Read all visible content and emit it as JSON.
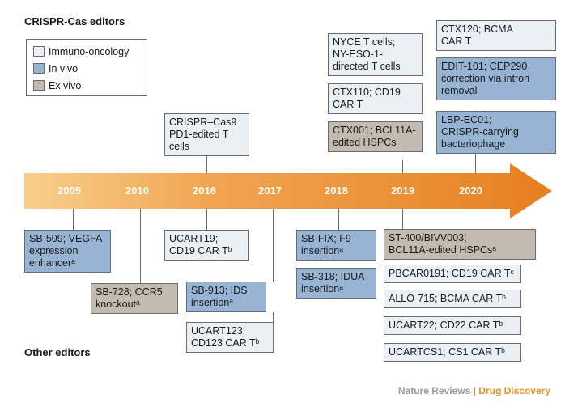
{
  "headings": {
    "crispr": "CRISPR-Cas editors",
    "other": "Other editors"
  },
  "legend": [
    {
      "label": "Immuno-oncology",
      "color": "#eaf0f6"
    },
    {
      "label": "In vivo",
      "color": "#98b4d4"
    },
    {
      "label": "Ex vivo",
      "color": "#c3bbaf"
    }
  ],
  "timeline": {
    "arrow_color_start": "#f6c77e",
    "arrow_color_end": "#e98425",
    "years": [
      "2005",
      "2010",
      "2016",
      "2017",
      "2018",
      "2019",
      "2020"
    ]
  },
  "crispr_items": {
    "pd1_2016": "CRISPR–Cas9\nPD1-edited T\ncells",
    "nyce_2019": "NYCE T cells;\nNY-ESO-1-\ndirected T cells",
    "ctx110_2019": "CTX110; CD19\nCAR T",
    "ctx001_2019": "CTX001; BCL11A-\nedited HSPCs",
    "ctx120_2020": "CTX120; BCMA\nCAR T",
    "edit101_2020": "EDIT-101; CEP290\ncorrection via intron\nremoval",
    "lbp_2020": "LBP-EC01;\nCRISPR-carrying\nbacteriophage"
  },
  "other_items": {
    "sb509": "SB-509; VEGFA\nexpression\nenhancerᵃ",
    "sb728": "SB-728; CCR5\nknockoutᵃ",
    "ucart19": "UCART19;\nCD19 CAR Tᵇ",
    "sb913": "SB-913; IDS\ninsertionᵃ",
    "ucart123": "UCART123;\nCD123 CAR Tᵇ",
    "sbfix": "SB-FIX; F9\ninsertionᵃ",
    "sb318": "SB-318; IDUA\ninsertionᵃ",
    "st400": "ST-400/BIVV003;\nBCL11A-edited HSPCsᵃ",
    "pbcar": "PBCAR0191; CD19 CAR Tᶜ",
    "allo715": "ALLO-715; BCMA CAR Tᵇ",
    "ucart22": "UCART22; CD22 CAR Tᵇ",
    "ucartcs1": "UCARTCS1; CS1 CAR Tᵇ"
  },
  "credit": {
    "journal": "Nature Reviews",
    "separator": " | ",
    "section": "Drug Discovery"
  }
}
